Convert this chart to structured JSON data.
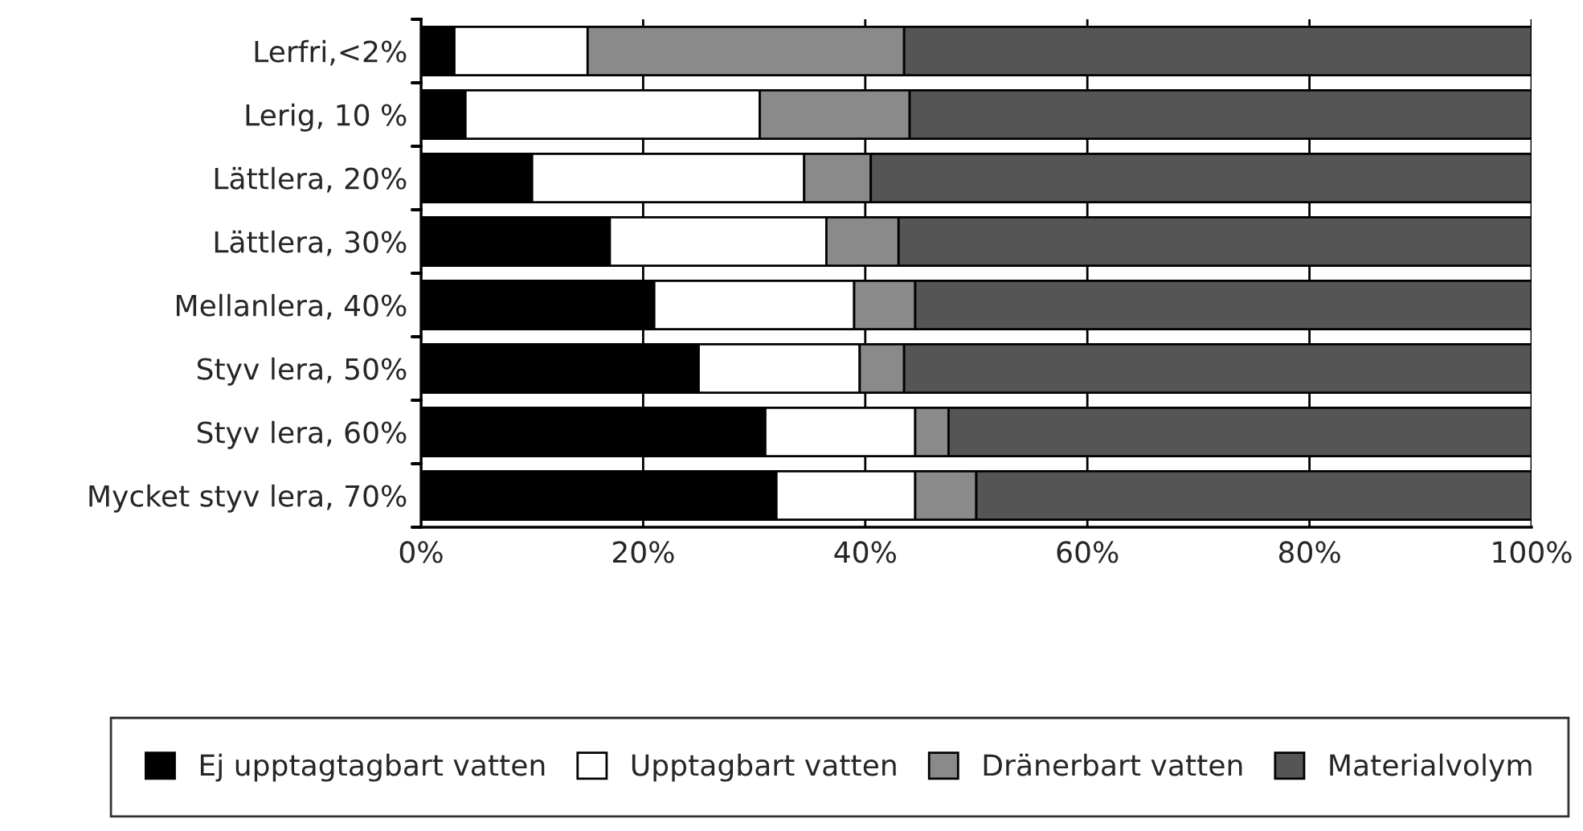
{
  "chart_data": {
    "type": "bar",
    "orientation": "horizontal",
    "stacked": true,
    "categories": [
      "Lerfri,<2%",
      "Lerig, 10 %",
      "Lättlera, 20%",
      "Lättlera, 30%",
      "Mellanlera, 40%",
      "Styv lera, 50%",
      "Styv lera, 60%",
      "Mycket styv lera, 70%"
    ],
    "series": [
      {
        "name": "Ej upptagtagbart vatten",
        "color": "#000000",
        "values": [
          3,
          4,
          10,
          17,
          21,
          25,
          31,
          32
        ]
      },
      {
        "name": "Upptagbart vatten",
        "color": "#ffffff",
        "values": [
          12,
          26.5,
          24.5,
          19.5,
          18,
          14.5,
          13.5,
          12.5
        ]
      },
      {
        "name": "Dränerbart vatten",
        "color": "#8a8a8a",
        "values": [
          28.5,
          13.5,
          6,
          6.5,
          5.5,
          4,
          3,
          5.5
        ]
      },
      {
        "name": "Materialvolym",
        "color": "#555555",
        "values": [
          56.5,
          56,
          59.5,
          57,
          55.5,
          56.5,
          52.5,
          50
        ]
      }
    ],
    "xlim": [
      0,
      100
    ],
    "xticks": [
      {
        "value": 0,
        "label": "0%"
      },
      {
        "value": 20,
        "label": "20%"
      },
      {
        "value": 40,
        "label": "40%"
      },
      {
        "value": 60,
        "label": "60%"
      },
      {
        "value": 80,
        "label": "80%"
      },
      {
        "value": 100,
        "label": "100%"
      }
    ],
    "grid": "x",
    "legend": "bottom"
  }
}
